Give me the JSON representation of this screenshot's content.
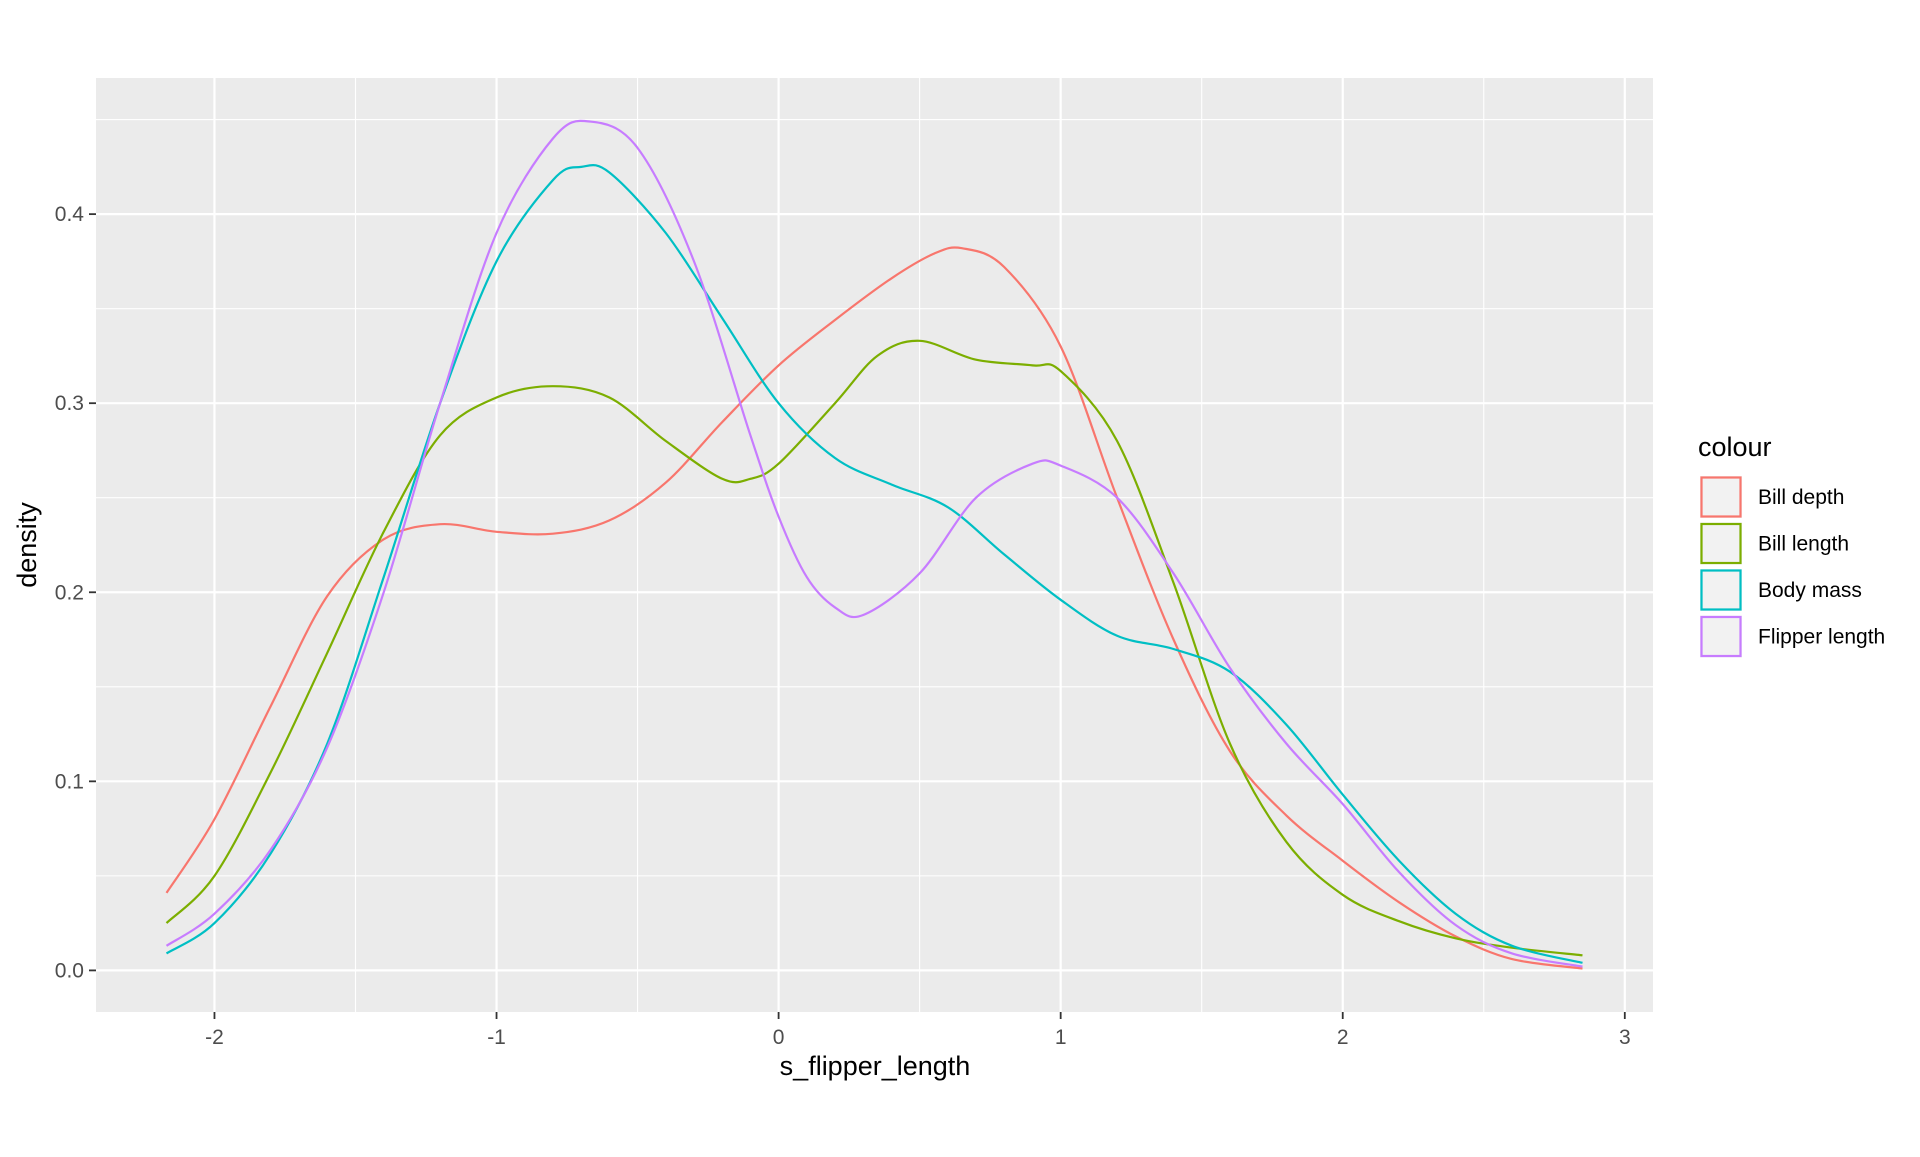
{
  "chart_data": {
    "type": "line",
    "title": "",
    "xlabel": "s_flipper_length",
    "ylabel": "density",
    "xlim": [
      -2.42,
      3.1
    ],
    "ylim": [
      -0.022,
      0.472
    ],
    "x_ticks": [
      -2,
      -1,
      0,
      1,
      2,
      3
    ],
    "x_tick_labels": [
      "-2",
      "-1",
      "0",
      "1",
      "2",
      "3"
    ],
    "y_ticks": [
      0.0,
      0.1,
      0.2,
      0.3,
      0.4
    ],
    "y_tick_labels": [
      "0.0",
      "0.1",
      "0.2",
      "0.3",
      "0.4"
    ],
    "grid": true,
    "legend": {
      "title": "colour",
      "position": "right"
    },
    "series": [
      {
        "name": "Bill depth",
        "color": "#F8766D",
        "points": [
          [
            -2.17,
            0.041
          ],
          [
            -2.0,
            0.08
          ],
          [
            -1.8,
            0.14
          ],
          [
            -1.6,
            0.198
          ],
          [
            -1.4,
            0.228
          ],
          [
            -1.2,
            0.236
          ],
          [
            -1.0,
            0.232
          ],
          [
            -0.8,
            0.231
          ],
          [
            -0.6,
            0.238
          ],
          [
            -0.4,
            0.258
          ],
          [
            -0.2,
            0.29
          ],
          [
            0.0,
            0.32
          ],
          [
            0.2,
            0.344
          ],
          [
            0.4,
            0.366
          ],
          [
            0.55,
            0.379
          ],
          [
            0.65,
            0.382
          ],
          [
            0.8,
            0.372
          ],
          [
            1.0,
            0.33
          ],
          [
            1.2,
            0.25
          ],
          [
            1.4,
            0.175
          ],
          [
            1.6,
            0.116
          ],
          [
            1.8,
            0.082
          ],
          [
            2.0,
            0.058
          ],
          [
            2.2,
            0.036
          ],
          [
            2.4,
            0.018
          ],
          [
            2.6,
            0.006
          ],
          [
            2.85,
            0.001
          ]
        ]
      },
      {
        "name": "Bill length",
        "color": "#7CAE00",
        "points": [
          [
            -2.17,
            0.025
          ],
          [
            -2.0,
            0.05
          ],
          [
            -1.8,
            0.105
          ],
          [
            -1.6,
            0.168
          ],
          [
            -1.4,
            0.232
          ],
          [
            -1.2,
            0.283
          ],
          [
            -1.0,
            0.303
          ],
          [
            -0.8,
            0.309
          ],
          [
            -0.6,
            0.303
          ],
          [
            -0.4,
            0.28
          ],
          [
            -0.2,
            0.26
          ],
          [
            -0.1,
            0.26
          ],
          [
            0.0,
            0.268
          ],
          [
            0.2,
            0.3
          ],
          [
            0.35,
            0.325
          ],
          [
            0.5,
            0.333
          ],
          [
            0.7,
            0.323
          ],
          [
            0.9,
            0.32
          ],
          [
            1.0,
            0.317
          ],
          [
            1.2,
            0.28
          ],
          [
            1.4,
            0.205
          ],
          [
            1.6,
            0.12
          ],
          [
            1.8,
            0.068
          ],
          [
            2.0,
            0.04
          ],
          [
            2.2,
            0.026
          ],
          [
            2.4,
            0.017
          ],
          [
            2.6,
            0.012
          ],
          [
            2.85,
            0.008
          ]
        ]
      },
      {
        "name": "Body mass",
        "color": "#00BFC4",
        "points": [
          [
            -2.17,
            0.009
          ],
          [
            -2.0,
            0.025
          ],
          [
            -1.8,
            0.062
          ],
          [
            -1.6,
            0.12
          ],
          [
            -1.4,
            0.208
          ],
          [
            -1.2,
            0.3
          ],
          [
            -1.0,
            0.375
          ],
          [
            -0.8,
            0.418
          ],
          [
            -0.7,
            0.425
          ],
          [
            -0.6,
            0.422
          ],
          [
            -0.4,
            0.39
          ],
          [
            -0.2,
            0.345
          ],
          [
            0.0,
            0.3
          ],
          [
            0.2,
            0.271
          ],
          [
            0.4,
            0.257
          ],
          [
            0.6,
            0.245
          ],
          [
            0.8,
            0.22
          ],
          [
            1.0,
            0.196
          ],
          [
            1.2,
            0.177
          ],
          [
            1.4,
            0.17
          ],
          [
            1.6,
            0.158
          ],
          [
            1.8,
            0.13
          ],
          [
            2.0,
            0.093
          ],
          [
            2.2,
            0.058
          ],
          [
            2.4,
            0.03
          ],
          [
            2.6,
            0.013
          ],
          [
            2.85,
            0.004
          ]
        ]
      },
      {
        "name": "Flipper length",
        "color": "#C77CFF",
        "points": [
          [
            -2.17,
            0.013
          ],
          [
            -2.0,
            0.03
          ],
          [
            -1.8,
            0.064
          ],
          [
            -1.6,
            0.118
          ],
          [
            -1.4,
            0.2
          ],
          [
            -1.2,
            0.3
          ],
          [
            -1.0,
            0.39
          ],
          [
            -0.8,
            0.44
          ],
          [
            -0.67,
            0.449
          ],
          [
            -0.5,
            0.435
          ],
          [
            -0.3,
            0.375
          ],
          [
            -0.1,
            0.283
          ],
          [
            0.0,
            0.24
          ],
          [
            0.1,
            0.208
          ],
          [
            0.2,
            0.192
          ],
          [
            0.3,
            0.188
          ],
          [
            0.5,
            0.21
          ],
          [
            0.7,
            0.25
          ],
          [
            0.9,
            0.268
          ],
          [
            1.0,
            0.267
          ],
          [
            1.2,
            0.25
          ],
          [
            1.4,
            0.21
          ],
          [
            1.6,
            0.16
          ],
          [
            1.8,
            0.12
          ],
          [
            2.0,
            0.088
          ],
          [
            2.2,
            0.052
          ],
          [
            2.4,
            0.024
          ],
          [
            2.6,
            0.009
          ],
          [
            2.85,
            0.002
          ]
        ]
      }
    ]
  }
}
